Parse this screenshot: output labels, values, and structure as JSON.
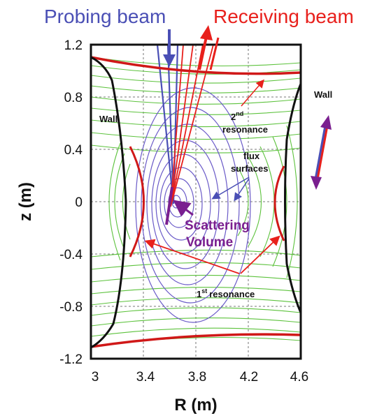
{
  "title_probing": "Probing beam",
  "title_receiving": "Receiving beam",
  "xlabel": "R (m)",
  "ylabel": "z (m)",
  "x_ticks": [
    "3",
    "3.4",
    "3.8",
    "4.2",
    "4.6"
  ],
  "y_ticks": [
    "1.2",
    "0.8",
    "0.4",
    "0",
    "-0.4",
    "-0.8",
    "-1.2"
  ],
  "labels": {
    "wall_left": "Wall",
    "wall_right": "Wall",
    "second_resonance_num": "2",
    "second_resonance_sup": "nd",
    "second_resonance_text": "resonance",
    "flux_1": "flux",
    "flux_2": "surfaces",
    "scattering_1": "Scattering",
    "scattering_2": "Volume",
    "first_resonance_num": "1",
    "first_resonance_sup": "st",
    "first_resonance_text": "resonance"
  },
  "colors": {
    "probing": "#4a4fb5",
    "receiving": "#e8201c",
    "flux": "#6a5ac8",
    "field": "#5cc23c",
    "scatter": "#7a1f8f",
    "wall": "#111111"
  }
}
